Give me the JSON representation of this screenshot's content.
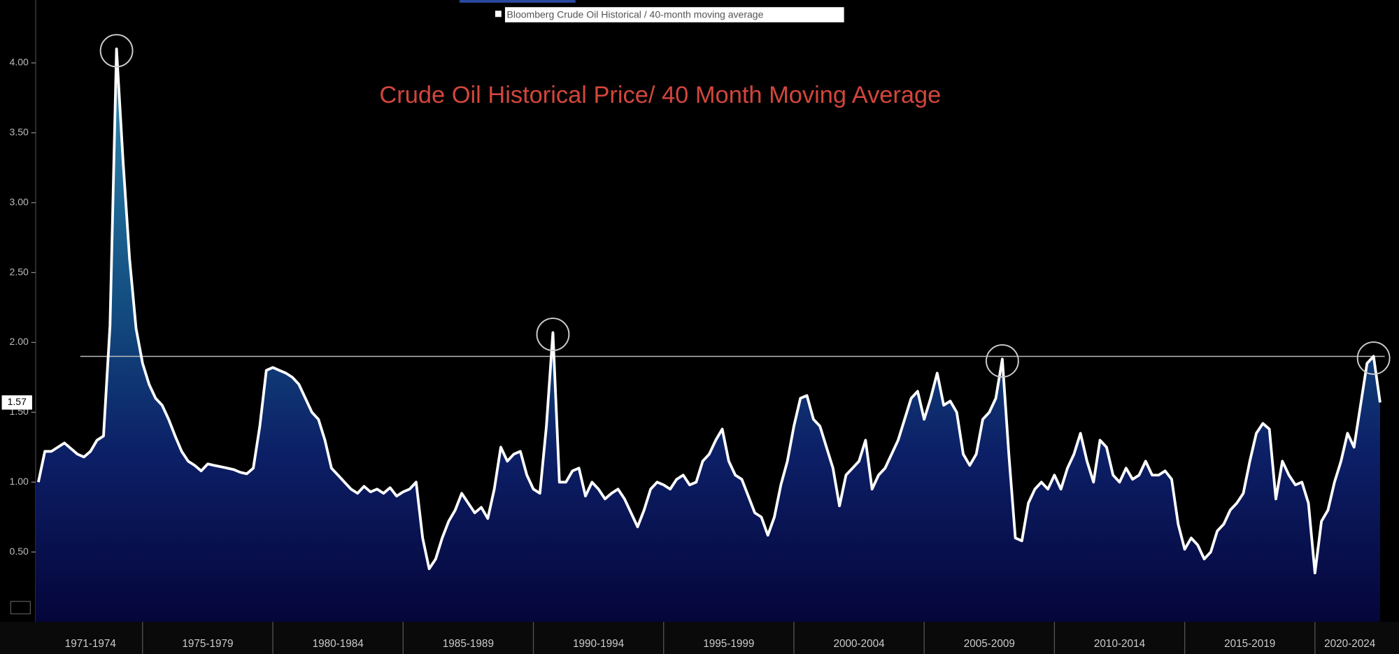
{
  "chart_data": {
    "type": "area",
    "title": "Crude Oil Historical Price/ 40 Month Moving Average",
    "series_name": "Bloomberg Crude Oil Historical / 40-month moving average",
    "color": "#ffffff",
    "title_color": "#d2463c",
    "reference_line": 1.9,
    "ylim": [
      0,
      4.45
    ],
    "yticks": [
      {
        "value": 0.5,
        "label": "0.50"
      },
      {
        "value": 1,
        "label": "1.00"
      },
      {
        "value": 1.5,
        "label": "1.50"
      },
      {
        "value": 2,
        "label": "2.00"
      },
      {
        "value": 2.5,
        "label": "2.50"
      },
      {
        "value": 3,
        "label": "3.00"
      },
      {
        "value": 3.5,
        "label": "3.50"
      },
      {
        "value": 4,
        "label": "4.00"
      }
    ],
    "periods": [
      {
        "label": "1971-1974",
        "values": [
          1.0,
          1.22,
          1.22,
          1.25,
          1.28,
          1.24,
          1.2,
          1.18,
          1.22,
          1.3,
          1.33,
          2.12,
          4.1,
          3.3,
          2.6,
          2.1
        ]
      },
      {
        "label": "1975-1979",
        "values": [
          1.85,
          1.7,
          1.6,
          1.55,
          1.45,
          1.33,
          1.22,
          1.15,
          1.12,
          1.08,
          1.13,
          1.12,
          1.11,
          1.1,
          1.09,
          1.07,
          1.06,
          1.1,
          1.4,
          1.8
        ]
      },
      {
        "label": "1980-1984",
        "values": [
          1.82,
          1.8,
          1.78,
          1.75,
          1.7,
          1.6,
          1.5,
          1.45,
          1.3,
          1.1,
          1.05,
          1.0,
          0.95,
          0.92,
          0.97,
          0.93,
          0.95,
          0.92,
          0.96,
          0.9
        ]
      },
      {
        "label": "1985-1989",
        "values": [
          0.93,
          0.95,
          1.0,
          0.6,
          0.38,
          0.45,
          0.6,
          0.72,
          0.8,
          0.92,
          0.85,
          0.78,
          0.82,
          0.74,
          0.95,
          1.25,
          1.15,
          1.2,
          1.22,
          1.05
        ]
      },
      {
        "label": "1990-1994",
        "values": [
          0.95,
          0.92,
          1.4,
          2.07,
          1.0,
          1.0,
          1.08,
          1.1,
          0.9,
          1.0,
          0.95,
          0.88,
          0.92,
          0.95,
          0.88,
          0.78,
          0.68,
          0.8,
          0.95,
          1.0
        ]
      },
      {
        "label": "1995-1999",
        "values": [
          0.98,
          0.95,
          1.02,
          1.05,
          0.98,
          1.0,
          1.15,
          1.2,
          1.3,
          1.38,
          1.15,
          1.05,
          1.02,
          0.9,
          0.78,
          0.75,
          0.62,
          0.75,
          0.98,
          1.15
        ]
      },
      {
        "label": "2000-2004",
        "values": [
          1.4,
          1.6,
          1.62,
          1.45,
          1.4,
          1.25,
          1.1,
          0.83,
          1.05,
          1.1,
          1.15,
          1.3,
          0.95,
          1.05,
          1.1,
          1.2,
          1.3,
          1.45,
          1.6,
          1.65
        ]
      },
      {
        "label": "2005-2009",
        "values": [
          1.45,
          1.6,
          1.78,
          1.55,
          1.58,
          1.5,
          1.2,
          1.12,
          1.2,
          1.45,
          1.5,
          1.6,
          1.88,
          1.2,
          0.6,
          0.58,
          0.85,
          0.95,
          1.0,
          0.95
        ]
      },
      {
        "label": "2010-2014",
        "values": [
          1.05,
          0.95,
          1.1,
          1.2,
          1.35,
          1.15,
          1.0,
          1.3,
          1.25,
          1.05,
          1.0,
          1.1,
          1.02,
          1.05,
          1.15,
          1.05,
          1.05,
          1.08,
          1.02,
          0.7
        ]
      },
      {
        "label": "2015-2019",
        "values": [
          0.52,
          0.6,
          0.55,
          0.45,
          0.5,
          0.65,
          0.7,
          0.8,
          0.85,
          0.92,
          1.15,
          1.35,
          1.42,
          1.38,
          0.88,
          1.15,
          1.05,
          0.98,
          1.0,
          0.85
        ]
      },
      {
        "label": "2020-2024",
        "values": [
          0.35,
          0.72,
          0.8,
          1.0,
          1.15,
          1.35,
          1.25,
          1.55,
          1.85,
          1.9,
          1.57
        ]
      }
    ]
  }
}
